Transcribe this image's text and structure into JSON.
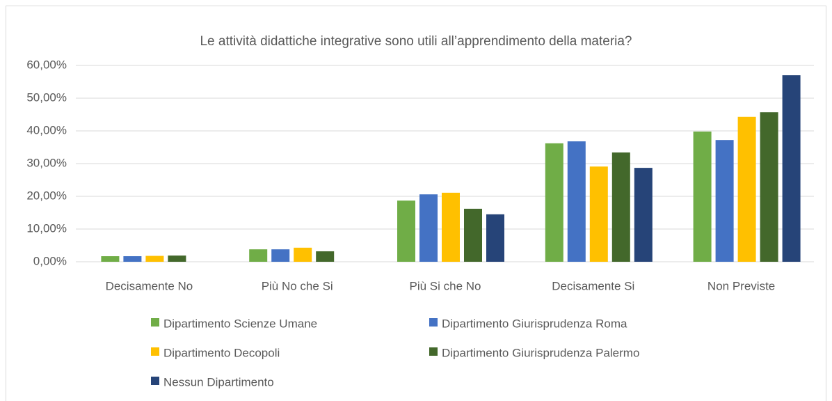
{
  "chart_data": {
    "type": "bar",
    "title": "Le attività didattiche integrative sono utili all’apprendimento della materia?",
    "categories": [
      "Decisamente No",
      "Più No che Si",
      "Più Si che No",
      "Decisamente Si",
      "Non Previste"
    ],
    "series": [
      {
        "name": "Dipartimento Scienze Umane",
        "color": "#70ad47",
        "values": [
          1.7,
          3.8,
          18.7,
          36.2,
          39.8
        ]
      },
      {
        "name": "Dipartimento Giurisprudenza Roma",
        "color": "#4472c4",
        "values": [
          1.7,
          3.8,
          20.6,
          36.8,
          37.2
        ]
      },
      {
        "name": "Dipartimento Decopoli",
        "color": "#ffc000",
        "values": [
          1.8,
          4.3,
          21.1,
          29.1,
          44.3
        ]
      },
      {
        "name": "Dipartimento Giurisprudenza Palermo",
        "color": "#43682b",
        "values": [
          1.9,
          3.2,
          16.2,
          33.4,
          45.7
        ]
      },
      {
        "name": "Nessun Dipartimento",
        "color": "#264478",
        "values": [
          0,
          0,
          14.5,
          28.7,
          57.0
        ]
      }
    ],
    "ylim": [
      0,
      60
    ],
    "yticks": [
      {
        "value": 0,
        "label": "0,00%"
      },
      {
        "value": 10,
        "label": "10,00%"
      },
      {
        "value": 20,
        "label": "20,00%"
      },
      {
        "value": 30,
        "label": "30,00%"
      },
      {
        "value": 40,
        "label": "40,00%"
      },
      {
        "value": 50,
        "label": "50,00%"
      },
      {
        "value": 60,
        "label": "60,00%"
      }
    ],
    "grid": true
  }
}
